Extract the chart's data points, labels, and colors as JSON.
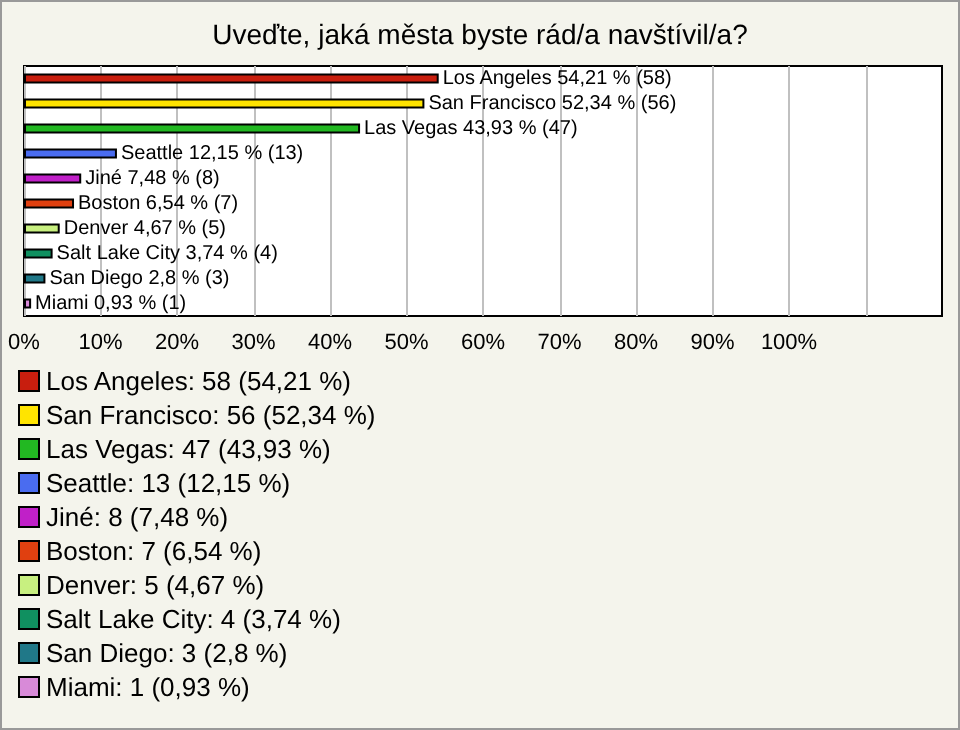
{
  "chart_data": {
    "type": "bar",
    "orientation": "horizontal",
    "title": "Uveďte, jaká města byste rád/a navštívil/a?",
    "categories": [
      "Los Angeles",
      "San Francisco",
      "Las Vegas",
      "Seattle",
      "Jiné",
      "Boston",
      "Denver",
      "Salt Lake City",
      "San Diego",
      "Miami"
    ],
    "values": [
      54.21,
      52.34,
      43.93,
      12.15,
      7.48,
      6.54,
      4.67,
      3.74,
      2.8,
      0.93
    ],
    "colors": [
      "#c81e0e",
      "#ffe400",
      "#22b822",
      "#4a6cf0",
      "#c020c8",
      "#e04010",
      "#c8f080",
      "#109060",
      "#207888",
      "#d88ad8"
    ],
    "value_labels": [
      "54,21 % (58)",
      "52,34 % (56)",
      "43,93 % (47)",
      "12,15 % (13)",
      "7,48 % (8)",
      "6,54 % (7)",
      "4,67 % (5)",
      "3,74 % (4)",
      "2,8 % (3)",
      "0,93 % (1)"
    ],
    "annotations": [
      "Los Angeles: 58 (54,21 %)",
      "San Francisco: 56 (52,34 %)",
      "Las Vegas: 47 (43,93 %)",
      "Seattle: 13 (12,15 %)",
      "Jiné: 8 (7,48 %)",
      "Boston: 7 (6,54 %)",
      "Denver: 5 (4,67 %)",
      "Salt Lake City: 4 (3,74 %)",
      "San Diego: 3 (2,8 %)",
      "Miami: 1 (0,93 %)"
    ],
    "xlim": [
      0,
      120
    ],
    "xticks": [
      {
        "value": 0,
        "label": "0%"
      },
      {
        "value": 10,
        "label": "10%"
      },
      {
        "value": 20,
        "label": "20%"
      },
      {
        "value": 30,
        "label": "30%"
      },
      {
        "value": 40,
        "label": "40%"
      },
      {
        "value": 50,
        "label": "50%"
      },
      {
        "value": 60,
        "label": "60%"
      },
      {
        "value": 70,
        "label": "70%"
      },
      {
        "value": 80,
        "label": "80%"
      },
      {
        "value": 90,
        "label": "90%"
      },
      {
        "value": 100,
        "label": "100%"
      },
      {
        "value": 110,
        "label": null
      }
    ],
    "grid": "x",
    "tick_labels": "x"
  }
}
